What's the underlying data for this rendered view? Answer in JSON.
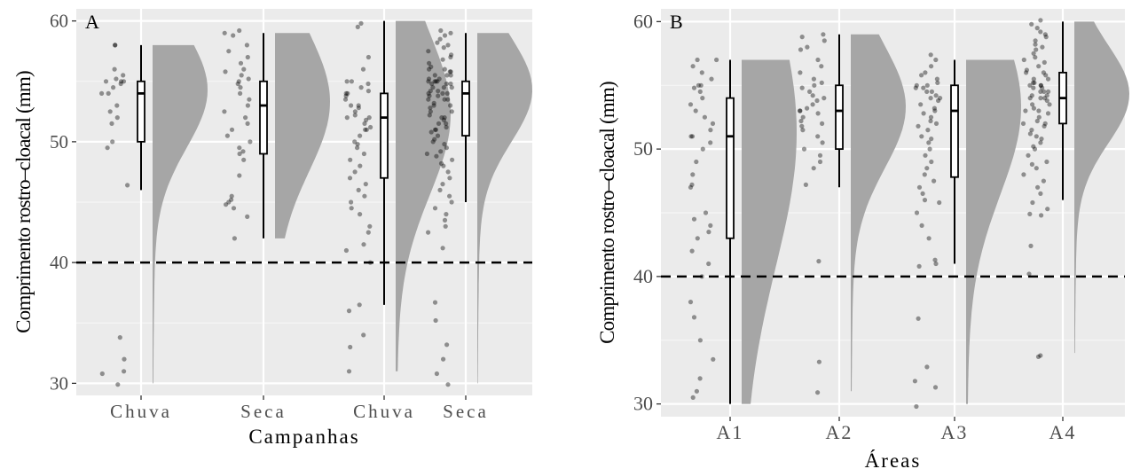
{
  "chart_data": [
    {
      "type": "raincloud",
      "panel_label": "A",
      "xlabel": "Campanhas",
      "ylabel": "Comprimento rostro–cloacal (mm)",
      "categories": [
        "Chuva",
        "Seca",
        "Chuva",
        "Seca"
      ],
      "ylim": [
        29,
        61
      ],
      "yticks": [
        30,
        40,
        50,
        60
      ],
      "reference_line": 40,
      "grid": true,
      "groups": [
        {
          "category": "Chuva",
          "box": {
            "min": 46,
            "q1": 50,
            "median": 54,
            "q3": 55,
            "max": 58
          },
          "density_range": [
            30,
            58
          ],
          "points": [
            55,
            54.8,
            55.2,
            54.5,
            54,
            55.5,
            55,
            56,
            58,
            58,
            54,
            53,
            52,
            51.5,
            55,
            52.5,
            50,
            49.5,
            46.4,
            33.8,
            32,
            31,
            30.8,
            29.9
          ]
        },
        {
          "category": "Seca",
          "box": {
            "min": 42,
            "q1": 49,
            "median": 53,
            "q3": 55,
            "max": 59
          },
          "density_range": [
            42,
            59
          ],
          "points": [
            59.2,
            59,
            58.8,
            58,
            57.5,
            57,
            56.5,
            56,
            55.8,
            55.5,
            55.2,
            55,
            54.8,
            54.5,
            54,
            53.5,
            53,
            52.5,
            52,
            51.5,
            51,
            50.5,
            50,
            49.5,
            49.2,
            49,
            48.5,
            47.2,
            45.5,
            45,
            44.8,
            44.5,
            43.8,
            42,
            45.2
          ]
        },
        {
          "category": "Chuva",
          "box": {
            "min": 36.5,
            "q1": 47,
            "median": 52,
            "q3": 54,
            "max": 60
          },
          "density_range": [
            31,
            60
          ],
          "points": [
            59.8,
            59.5,
            57,
            56,
            55,
            55,
            54.8,
            54.5,
            54.2,
            54,
            54,
            53.8,
            53.5,
            53,
            53,
            52.8,
            52.5,
            52.2,
            52,
            52,
            51.8,
            51.5,
            51.2,
            51,
            51,
            50.5,
            50,
            49.8,
            49.5,
            49,
            48.5,
            48,
            47.5,
            47,
            46.5,
            46,
            45.5,
            45,
            44.5,
            44,
            43,
            42.5,
            41.5,
            41,
            40,
            36.5,
            36,
            34,
            33,
            31
          ]
        },
        {
          "category": "Seca",
          "box": {
            "min": 45,
            "q1": 50.5,
            "median": 54,
            "q3": 55,
            "max": 59
          },
          "density_range": [
            30,
            59
          ],
          "points": [
            59.2,
            59,
            58.8,
            58.5,
            58.2,
            58,
            57.8,
            57.5,
            57.2,
            57,
            56.8,
            56.5,
            56.2,
            56,
            56,
            55.8,
            55.8,
            55.5,
            55.5,
            55.5,
            55.2,
            55.2,
            55,
            55,
            55,
            55,
            54.8,
            54.8,
            54.8,
            54.5,
            54.5,
            54.5,
            54.2,
            54.2,
            54,
            54,
            54,
            53.8,
            53.8,
            53.5,
            53.5,
            53.5,
            53.2,
            53,
            53,
            52.8,
            52.5,
            52.5,
            52.2,
            52,
            52,
            51.8,
            51.5,
            51.5,
            51.2,
            51,
            51,
            50.8,
            50.5,
            50.2,
            50,
            49.8,
            49.5,
            49.2,
            49,
            48.8,
            48.5,
            48.2,
            48,
            47.5,
            47,
            46.5,
            46,
            45.5,
            45,
            44.5,
            44,
            43.5,
            43,
            42.5,
            41.2,
            36.7,
            35.2,
            33.2,
            32,
            30.8,
            29.9
          ]
        }
      ]
    },
    {
      "type": "raincloud",
      "panel_label": "B",
      "xlabel": "Áreas",
      "ylabel": "Comprimento rostro–cloacal (mm)",
      "categories": [
        "A1",
        "A2",
        "A3",
        "A4"
      ],
      "ylim": [
        29,
        61
      ],
      "yticks": [
        30,
        40,
        50,
        60
      ],
      "reference_line": 40,
      "grid": true,
      "groups": [
        {
          "category": "A1",
          "box": {
            "min": 30,
            "q1": 43,
            "median": 51,
            "q3": 54,
            "max": 57
          },
          "density_range": [
            30,
            57
          ],
          "points": [
            57,
            57,
            56.5,
            56,
            55.5,
            55,
            55,
            54.8,
            54.5,
            54,
            53.5,
            53,
            52.5,
            52,
            51.5,
            51,
            51,
            50.5,
            50,
            49,
            48,
            47.2,
            47,
            45,
            44.5,
            44,
            43.5,
            43,
            42,
            41,
            40,
            38,
            36.8,
            35,
            33.5,
            32,
            31,
            30.5
          ]
        },
        {
          "category": "A2",
          "box": {
            "min": 47,
            "q1": 50,
            "median": 53,
            "q3": 55,
            "max": 59
          },
          "density_range": [
            31,
            59
          ],
          "points": [
            59,
            58.8,
            58.5,
            58,
            57.8,
            57,
            56.5,
            56,
            55.5,
            55.2,
            55,
            54.8,
            54.5,
            54.2,
            54,
            53.8,
            53.5,
            53.2,
            53,
            53,
            52.8,
            52.5,
            52.2,
            52,
            51.8,
            51.5,
            51,
            50.5,
            50,
            49.5,
            49,
            48.5,
            47.2,
            41.2,
            33.3,
            30.9
          ]
        },
        {
          "category": "A3",
          "box": {
            "min": 41,
            "q1": 47.8,
            "median": 53,
            "q3": 55,
            "max": 57
          },
          "density_range": [
            30,
            57
          ],
          "points": [
            57.4,
            57,
            56.5,
            56,
            55.8,
            55.5,
            55.2,
            55,
            55,
            54.8,
            54.8,
            54.5,
            54.5,
            54.2,
            54,
            54,
            53.8,
            53.5,
            53.2,
            53,
            52.8,
            52.5,
            52.2,
            52,
            51.8,
            51.5,
            51,
            50.8,
            50.5,
            50,
            49.5,
            49,
            48.5,
            48,
            47.5,
            47,
            46.5,
            46,
            45.8,
            45,
            44,
            43,
            41.3,
            41,
            40.8,
            36.7,
            32.9,
            31.8,
            31.3,
            29.8
          ]
        },
        {
          "category": "A4",
          "box": {
            "min": 46,
            "q1": 52,
            "median": 54,
            "q3": 56,
            "max": 60
          },
          "density_range": [
            34,
            60
          ],
          "points": [
            60.1,
            59.8,
            59.5,
            59.2,
            59,
            58.8,
            58.5,
            58.2,
            58,
            57.8,
            57.5,
            57.2,
            57,
            56.8,
            56.5,
            56.2,
            56,
            56,
            55.8,
            55.5,
            55.5,
            55.2,
            55.2,
            55,
            55,
            55,
            54.8,
            54.8,
            54.5,
            54.5,
            54.5,
            54.2,
            54.2,
            54,
            54,
            54,
            53.8,
            53.5,
            53.5,
            53.2,
            53,
            53,
            52.8,
            52.5,
            52.2,
            52,
            52,
            51.8,
            51.5,
            51.2,
            51,
            50.8,
            50.5,
            50.2,
            50,
            49.5,
            49,
            48.8,
            48.5,
            48,
            47.5,
            47,
            46.5,
            45.8,
            45.3,
            44.9,
            44.8,
            42.4,
            40.2,
            33.8,
            33.7
          ]
        }
      ]
    }
  ]
}
